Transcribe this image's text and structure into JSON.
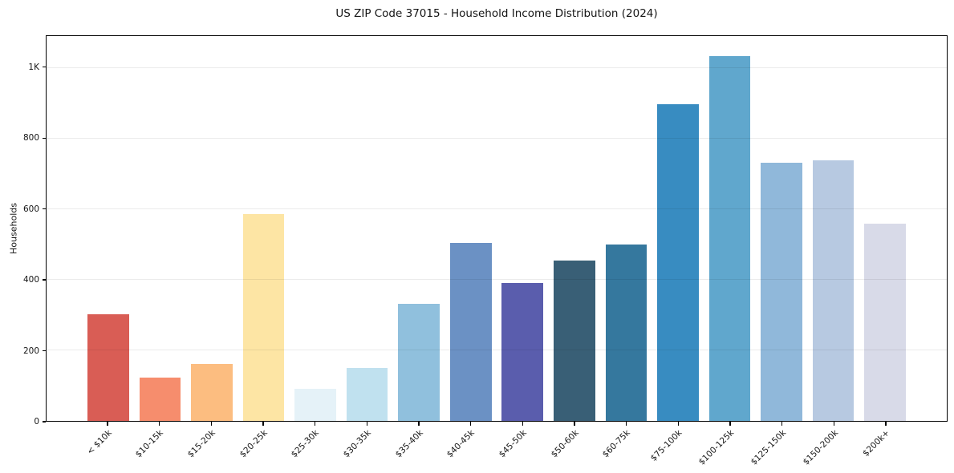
{
  "chart_data": {
    "type": "bar",
    "title": "US ZIP Code 37015 - Household Income Distribution (2024)",
    "xlabel": "",
    "ylabel": "Households",
    "categories": [
      "< $10k",
      "$10-15k",
      "$15-20k",
      "$20-25k",
      "$25-30k",
      "$30-35k",
      "$35-40k",
      "$40-45k",
      "$45-50k",
      "$50-60k",
      "$60-75k",
      "$75-100k",
      "$100-125k",
      "$125-150k",
      "$150-200k",
      "$200k+"
    ],
    "values": [
      303,
      122,
      161,
      585,
      90,
      150,
      331,
      504,
      390,
      455,
      500,
      897,
      1034,
      732,
      738,
      558
    ],
    "bar_colors": [
      "#d95d55",
      "#f68d6d",
      "#fcbd80",
      "#fde5a4",
      "#e5f2f8",
      "#c0e1ef",
      "#90c0dd",
      "#6b91c4",
      "#5a5dad",
      "#395f76",
      "#35789e",
      "#388cc1",
      "#60a7cd",
      "#90b8da",
      "#b7c9e1",
      "#d8dae8"
    ],
    "ylim": [
      0,
      1090
    ],
    "y_ticks": [
      {
        "value": 0,
        "label": "0"
      },
      {
        "value": 200,
        "label": "200"
      },
      {
        "value": 400,
        "label": "400"
      },
      {
        "value": 600,
        "label": "600"
      },
      {
        "value": 800,
        "label": "800"
      },
      {
        "value": 1000,
        "label": "1K"
      }
    ],
    "grid": "horizontal-over-bars",
    "legend": "none",
    "colors": {
      "background": "#ffffff",
      "spine": "#000000",
      "grid": "#ebebeb",
      "text": "#151515"
    }
  }
}
